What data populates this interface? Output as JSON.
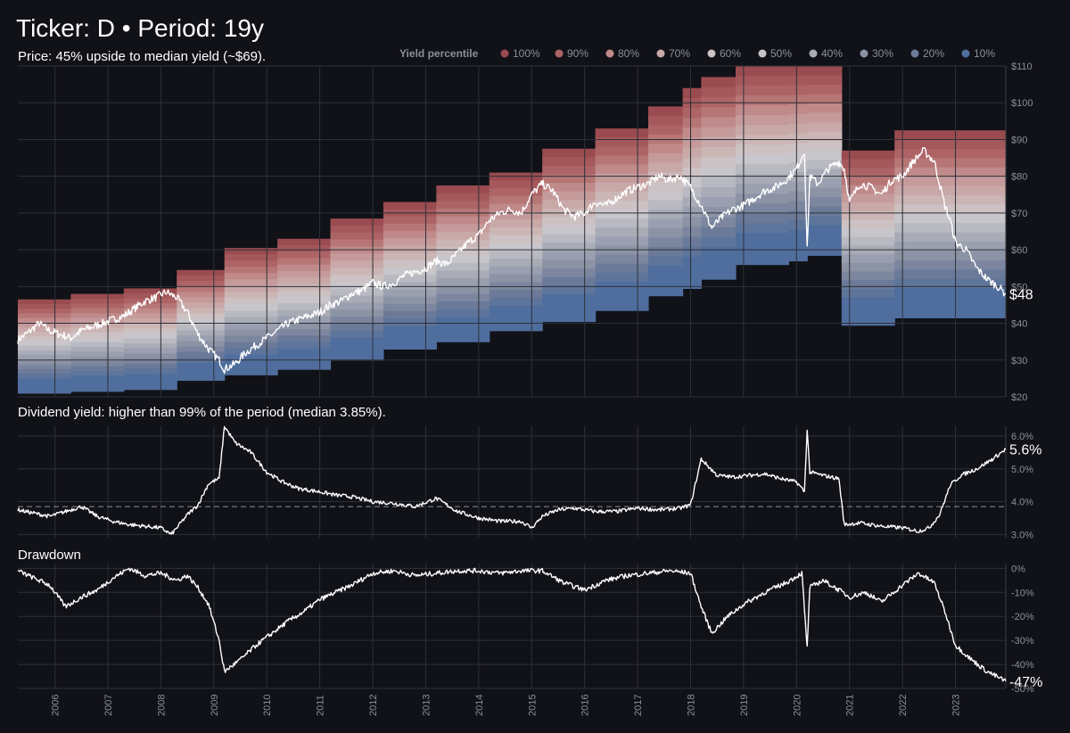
{
  "title": "Ticker: D  •  Period: 19y",
  "price_caption": "Price:  45% upside to median yield (~$69).",
  "yield_caption": "Dividend yield: higher than 99% of the period (median 3.85%).",
  "drawdown_caption": "Drawdown",
  "legend": {
    "title": "Yield percentile",
    "items": [
      {
        "label": "100%",
        "color": "#9a4b4f"
      },
      {
        "label": "90%",
        "color": "#ad6466"
      },
      {
        "label": "80%",
        "color": "#c08a8b"
      },
      {
        "label": "70%",
        "color": "#c9a8a8"
      },
      {
        "label": "60%",
        "color": "#cdc2c3"
      },
      {
        "label": "50%",
        "color": "#c3c3c8"
      },
      {
        "label": "40%",
        "color": "#a9acb6"
      },
      {
        "label": "30%",
        "color": "#8c93a5"
      },
      {
        "label": "20%",
        "color": "#6b7a98"
      },
      {
        "label": "10%",
        "color": "#4f6e9e"
      }
    ]
  },
  "colors": {
    "background": "#111218",
    "grid": "#2e3038",
    "line": "#ffffff",
    "axis_text": "#8c8f98",
    "bands_top_to_bottom": [
      "#9a4b4f",
      "#a4585b",
      "#ad6466",
      "#b77676",
      "#c08a8b",
      "#c59a9b",
      "#c9a8a8",
      "#cbb5b5",
      "#cdc2c3",
      "#c8c6ca",
      "#b9bac1",
      "#a9acb6",
      "#9aa0af",
      "#8c93a5",
      "#7c879f",
      "#6b7a98",
      "#5e759b",
      "#4f6e9e"
    ]
  },
  "chart_data": [
    {
      "type": "area",
      "name": "price",
      "x_ticks": [
        "2006",
        "2007",
        "2008",
        "2009",
        "2010",
        "2011",
        "2012",
        "2013",
        "2014",
        "2015",
        "2016",
        "2017",
        "2018",
        "2019",
        "2020",
        "2021",
        "2022",
        "2023"
      ],
      "y_ticks": [
        "$20",
        "$30",
        "$40",
        "$50",
        "$60",
        "$70",
        "$80",
        "$90",
        "$100",
        "$110"
      ],
      "ylim": [
        20,
        110
      ],
      "xlim": [
        2005.3,
        2023.95
      ],
      "end_label": "$48",
      "band_blocks": [
        {
          "x0": 2005.3,
          "x1": 2006.3,
          "bottom": 21,
          "top": 46.5
        },
        {
          "x0": 2006.3,
          "x1": 2007.3,
          "bottom": 21.5,
          "top": 48
        },
        {
          "x0": 2007.3,
          "x1": 2008.3,
          "bottom": 22,
          "top": 49.5
        },
        {
          "x0": 2008.3,
          "x1": 2009.2,
          "bottom": 24.5,
          "top": 54.5
        },
        {
          "x0": 2009.2,
          "x1": 2010.2,
          "bottom": 26,
          "top": 60.5
        },
        {
          "x0": 2010.2,
          "x1": 2011.2,
          "bottom": 27.5,
          "top": 63
        },
        {
          "x0": 2011.2,
          "x1": 2012.2,
          "bottom": 30,
          "top": 68.5
        },
        {
          "x0": 2012.2,
          "x1": 2013.2,
          "bottom": 33,
          "top": 73
        },
        {
          "x0": 2013.2,
          "x1": 2014.2,
          "bottom": 35,
          "top": 77.5
        },
        {
          "x0": 2014.2,
          "x1": 2015.2,
          "bottom": 38,
          "top": 81
        },
        {
          "x0": 2015.2,
          "x1": 2016.2,
          "bottom": 40.5,
          "top": 87.5
        },
        {
          "x0": 2016.2,
          "x1": 2017.2,
          "bottom": 43.5,
          "top": 93
        },
        {
          "x0": 2017.2,
          "x1": 2017.85,
          "bottom": 47.5,
          "top": 99
        },
        {
          "x0": 2017.85,
          "x1": 2018.2,
          "bottom": 49.5,
          "top": 104
        },
        {
          "x0": 2018.2,
          "x1": 2018.85,
          "bottom": 52,
          "top": 107
        },
        {
          "x0": 2018.85,
          "x1": 2019.85,
          "bottom": 56,
          "top": 110
        },
        {
          "x0": 2019.85,
          "x1": 2020.2,
          "bottom": 57,
          "top": 110
        },
        {
          "x0": 2020.2,
          "x1": 2020.85,
          "bottom": 58.5,
          "top": 110
        },
        {
          "x0": 2020.85,
          "x1": 2021.85,
          "bottom": 39.5,
          "top": 87
        },
        {
          "x0": 2021.85,
          "x1": 2023.95,
          "bottom": 41.5,
          "top": 92.5
        }
      ],
      "series": [
        {
          "x": [
            2005.3,
            2005.5,
            2005.7,
            2005.9,
            2006.1,
            2006.3,
            2006.5,
            2006.7,
            2006.9,
            2007.1,
            2007.3,
            2007.5,
            2007.7,
            2007.9,
            2008.1,
            2008.3,
            2008.5,
            2008.7,
            2008.9,
            2009.1,
            2009.2,
            2009.4,
            2009.6,
            2009.8,
            2010.0,
            2010.2,
            2010.4,
            2010.6,
            2010.8,
            2011.0,
            2011.2,
            2011.4,
            2011.6,
            2011.8,
            2012.0,
            2012.2,
            2012.4,
            2012.6,
            2012.8,
            2013.0,
            2013.2,
            2013.4,
            2013.6,
            2013.8,
            2014.0,
            2014.2,
            2014.4,
            2014.6,
            2014.8,
            2015.0,
            2015.2,
            2015.4,
            2015.6,
            2015.8,
            2016.0,
            2016.2,
            2016.4,
            2016.6,
            2016.8,
            2017.0,
            2017.2,
            2017.4,
            2017.6,
            2017.8,
            2018.0,
            2018.2,
            2018.4,
            2018.6,
            2018.8,
            2019.0,
            2019.2,
            2019.4,
            2019.6,
            2019.8,
            2020.0,
            2020.15,
            2020.2,
            2020.25,
            2020.4,
            2020.6,
            2020.8,
            2020.9,
            2021.0,
            2021.2,
            2021.4,
            2021.6,
            2021.8,
            2022.0,
            2022.2,
            2022.4,
            2022.6,
            2022.8,
            2022.9,
            2023.0,
            2023.2,
            2023.4,
            2023.6,
            2023.8,
            2023.95
          ],
          "y": [
            35.5,
            37.5,
            40,
            38,
            37,
            36,
            38,
            39,
            40,
            41,
            42,
            44,
            46,
            47,
            48.5,
            47,
            43,
            37,
            33,
            30,
            27.5,
            29,
            32,
            34,
            36,
            38,
            40,
            41,
            42,
            43,
            45,
            46,
            48,
            49,
            51,
            50,
            51,
            53,
            54,
            55,
            57,
            56,
            59,
            62,
            64,
            68,
            70,
            71,
            70,
            75,
            78,
            76,
            71,
            69,
            70,
            73,
            72,
            74,
            76,
            77,
            78,
            80,
            79,
            80,
            77,
            72,
            66,
            69,
            71,
            72,
            74,
            76,
            77,
            79,
            82,
            87,
            60,
            80,
            78,
            82,
            84,
            82,
            73,
            78,
            77,
            75,
            79,
            80,
            84,
            87,
            84,
            72,
            68,
            62,
            60,
            55,
            52,
            50,
            48
          ]
        }
      ]
    },
    {
      "type": "line",
      "name": "dividend_yield",
      "y_ticks": [
        "3.0%",
        "4.0%",
        "5.0%",
        "6.0%"
      ],
      "ylim": [
        2.9,
        6.3
      ],
      "median": 3.85,
      "end_label": "5.6%",
      "series": [
        {
          "x": [
            2005.3,
            2005.6,
            2005.9,
            2006.2,
            2006.5,
            2006.8,
            2007.1,
            2007.4,
            2007.7,
            2008.0,
            2008.2,
            2008.5,
            2008.7,
            2008.9,
            2009.1,
            2009.2,
            2009.4,
            2009.7,
            2010.0,
            2010.3,
            2010.6,
            2011.0,
            2011.3,
            2011.6,
            2012.0,
            2012.4,
            2012.8,
            2013.2,
            2013.6,
            2014.0,
            2014.4,
            2014.8,
            2015.0,
            2015.2,
            2015.5,
            2015.8,
            2016.2,
            2016.6,
            2017.0,
            2017.4,
            2017.8,
            2018.0,
            2018.2,
            2018.5,
            2018.8,
            2019.1,
            2019.4,
            2019.7,
            2020.0,
            2020.15,
            2020.2,
            2020.25,
            2020.5,
            2020.8,
            2020.9,
            2021.2,
            2021.6,
            2022.0,
            2022.3,
            2022.5,
            2022.7,
            2022.9,
            2023.1,
            2023.4,
            2023.7,
            2023.95
          ],
          "y": [
            3.75,
            3.65,
            3.55,
            3.7,
            3.85,
            3.55,
            3.4,
            3.3,
            3.25,
            3.2,
            3.0,
            3.6,
            3.9,
            4.55,
            4.7,
            6.3,
            5.8,
            5.5,
            4.9,
            4.6,
            4.4,
            4.3,
            4.2,
            4.15,
            4.0,
            3.95,
            3.85,
            4.1,
            3.7,
            3.5,
            3.4,
            3.4,
            3.2,
            3.55,
            3.75,
            3.8,
            3.7,
            3.7,
            3.8,
            3.75,
            3.8,
            3.9,
            5.3,
            4.8,
            4.75,
            4.8,
            4.85,
            4.7,
            4.6,
            4.3,
            6.2,
            4.9,
            4.8,
            4.7,
            3.3,
            3.35,
            3.25,
            3.2,
            3.1,
            3.2,
            3.6,
            4.5,
            4.8,
            5.0,
            5.3,
            5.6
          ]
        }
      ]
    },
    {
      "type": "line",
      "name": "drawdown",
      "y_ticks": [
        "0%",
        "-10%",
        "-20%",
        "-30%",
        "-40%",
        "-50%"
      ],
      "ylim": [
        -50,
        2
      ],
      "end_label": "-47%",
      "series": [
        {
          "x": [
            2005.3,
            2005.6,
            2005.9,
            2006.2,
            2006.5,
            2006.8,
            2007.1,
            2007.4,
            2007.7,
            2008.0,
            2008.3,
            2008.5,
            2008.7,
            2008.9,
            2009.1,
            2009.2,
            2009.5,
            2009.8,
            2010.1,
            2010.4,
            2010.7,
            2011.0,
            2011.3,
            2011.6,
            2012.0,
            2012.4,
            2012.8,
            2013.2,
            2013.6,
            2014.0,
            2014.4,
            2014.8,
            2015.2,
            2015.6,
            2016.0,
            2016.4,
            2016.8,
            2017.2,
            2017.6,
            2018.0,
            2018.2,
            2018.4,
            2018.7,
            2019.0,
            2019.4,
            2019.8,
            2020.1,
            2020.2,
            2020.25,
            2020.5,
            2020.8,
            2021.0,
            2021.3,
            2021.6,
            2022.0,
            2022.3,
            2022.6,
            2022.8,
            2023.0,
            2023.3,
            2023.6,
            2023.95
          ],
          "y": [
            -1,
            -4,
            -7,
            -16,
            -12,
            -9,
            -4,
            0,
            -3,
            -2,
            -5,
            -3,
            -8,
            -15,
            -30,
            -43,
            -38,
            -32,
            -27,
            -22,
            -18,
            -13,
            -10,
            -7,
            -2,
            -1,
            -3,
            -2,
            -1,
            -1,
            -2,
            -1,
            -1,
            -6,
            -9,
            -5,
            -3,
            -2,
            -1,
            -2,
            -16,
            -27,
            -20,
            -15,
            -10,
            -6,
            -2,
            -33,
            -8,
            -5,
            -9,
            -12,
            -10,
            -14,
            -7,
            -2,
            -6,
            -18,
            -32,
            -38,
            -43,
            -47
          ]
        }
      ]
    }
  ]
}
